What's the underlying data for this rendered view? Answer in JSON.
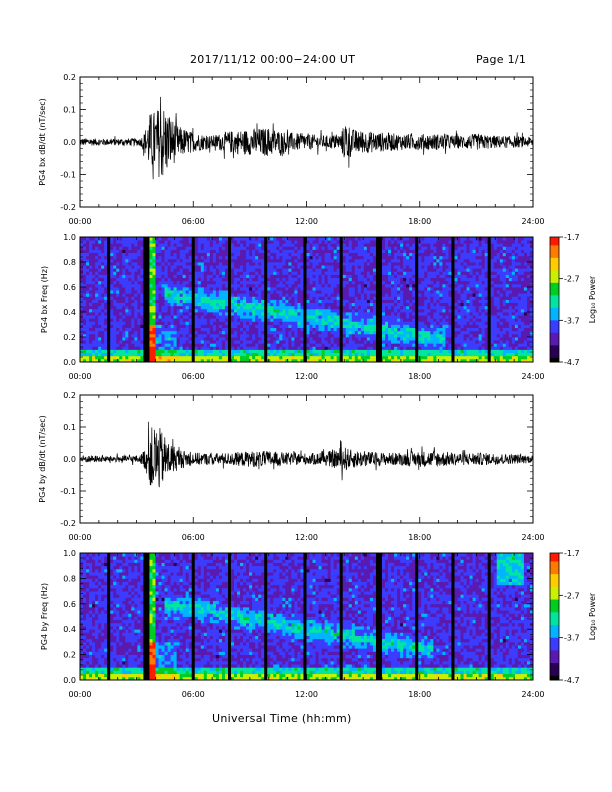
{
  "header": {
    "title": "2017/11/12  00:00−24:00 UT",
    "page": "Page 1/1"
  },
  "x_axis": {
    "label": "Universal Time (hh:mm)",
    "ticks": [
      "00:00",
      "06:00",
      "12:00",
      "18:00",
      "24:00"
    ],
    "range_hours": [
      0,
      24
    ]
  },
  "colors": {
    "waveform": "#000000",
    "colormap": [
      "#000000",
      "#2a0055",
      "#5a1ab0",
      "#3c3cff",
      "#00b4ff",
      "#00e6a0",
      "#00cc22",
      "#c8f000",
      "#ffcc00",
      "#ff7a00",
      "#ff1a00"
    ]
  },
  "chart_data": [
    {
      "type": "line",
      "ylabel": "PG4 bx dB/dt (nT/sec)",
      "ylim": [
        -0.2,
        0.2
      ],
      "yticks": [
        "-0.2",
        "-0.1",
        "0.0",
        "0.1",
        "0.2"
      ],
      "xlim": [
        0,
        24
      ],
      "envelope": [
        [
          0,
          0.012
        ],
        [
          1.5,
          0.01
        ],
        [
          3.2,
          0.012
        ],
        [
          3.4,
          0.03
        ],
        [
          3.7,
          0.09
        ],
        [
          4,
          0.1
        ],
        [
          4.4,
          0.12
        ],
        [
          4.8,
          0.08
        ],
        [
          5.2,
          0.05
        ],
        [
          6,
          0.03
        ],
        [
          7,
          0.02
        ],
        [
          8,
          0.035
        ],
        [
          9,
          0.04
        ],
        [
          10,
          0.045
        ],
        [
          11,
          0.03
        ],
        [
          12,
          0.025
        ],
        [
          13,
          0.02
        ],
        [
          13.8,
          0.025
        ],
        [
          14.1,
          0.07
        ],
        [
          14.4,
          0.04
        ],
        [
          15,
          0.035
        ],
        [
          16,
          0.03
        ],
        [
          17,
          0.025
        ],
        [
          18,
          0.025
        ],
        [
          19,
          0.025
        ],
        [
          20,
          0.02
        ],
        [
          21,
          0.025
        ],
        [
          22,
          0.02
        ],
        [
          23,
          0.018
        ],
        [
          24,
          0.015
        ]
      ]
    },
    {
      "type": "heatmap",
      "ylabel": "PG4 bx Freq (Hz)",
      "ylim": [
        0,
        1
      ],
      "yticks": [
        "0.0",
        "0.2",
        "0.4",
        "0.6",
        "0.8",
        "1.0"
      ],
      "xlim": [
        0,
        24
      ],
      "colorbar": {
        "label": "Log₁₀ Power",
        "range": [
          -4.7,
          -1.7
        ],
        "ticks": [
          "-1.7",
          "-2.7",
          "-3.7",
          "-4.7"
        ]
      },
      "gaps_hours": [
        1.5,
        3.55,
        6.0,
        7.95,
        9.85,
        11.9,
        13.8,
        15.85,
        17.8,
        19.8,
        21.7
      ],
      "bright_band_hours": [
        3.65,
        4.0
      ],
      "emission_band": {
        "start": [
          4.5,
          0.55
        ],
        "end": [
          18.5,
          0.2
        ]
      }
    },
    {
      "type": "line",
      "ylabel": "PG4 by dB/dt (nT/sec)",
      "ylim": [
        -0.2,
        0.2
      ],
      "yticks": [
        "-0.2",
        "-0.1",
        "0.0",
        "0.1",
        "0.2"
      ],
      "xlim": [
        0,
        24
      ],
      "envelope": [
        [
          0,
          0.012
        ],
        [
          1.5,
          0.01
        ],
        [
          3.2,
          0.012
        ],
        [
          3.5,
          0.04
        ],
        [
          3.8,
          0.1
        ],
        [
          4.1,
          0.11
        ],
        [
          4.4,
          0.08
        ],
        [
          4.8,
          0.05
        ],
        [
          5.3,
          0.03
        ],
        [
          6,
          0.02
        ],
        [
          7,
          0.018
        ],
        [
          8,
          0.02
        ],
        [
          9,
          0.025
        ],
        [
          10,
          0.025
        ],
        [
          11,
          0.02
        ],
        [
          12,
          0.018
        ],
        [
          13,
          0.02
        ],
        [
          14,
          0.04
        ],
        [
          14.3,
          0.03
        ],
        [
          15,
          0.025
        ],
        [
          16,
          0.02
        ],
        [
          17,
          0.02
        ],
        [
          18,
          0.025
        ],
        [
          19,
          0.025
        ],
        [
          20,
          0.02
        ],
        [
          21,
          0.02
        ],
        [
          22,
          0.018
        ],
        [
          23,
          0.015
        ],
        [
          24,
          0.012
        ]
      ]
    },
    {
      "type": "heatmap",
      "ylabel": "PG4 by Freq (Hz)",
      "ylim": [
        0,
        1
      ],
      "yticks": [
        "0.0",
        "0.2",
        "0.4",
        "0.6",
        "0.8",
        "1.0"
      ],
      "xlim": [
        0,
        24
      ],
      "colorbar": {
        "label": "Log₁₀ Power",
        "range": [
          -4.7,
          -1.7
        ],
        "ticks": [
          "-1.7",
          "-2.7",
          "-3.7",
          "-4.7"
        ]
      },
      "gaps_hours": [
        1.5,
        3.55,
        6.0,
        7.95,
        9.85,
        11.9,
        13.8,
        15.85,
        17.8,
        19.8,
        21.7
      ],
      "bright_band_hours": [
        3.65,
        4.0
      ],
      "emission_band": {
        "start": [
          4.5,
          0.6
        ],
        "end": [
          18.0,
          0.25
        ]
      }
    }
  ]
}
